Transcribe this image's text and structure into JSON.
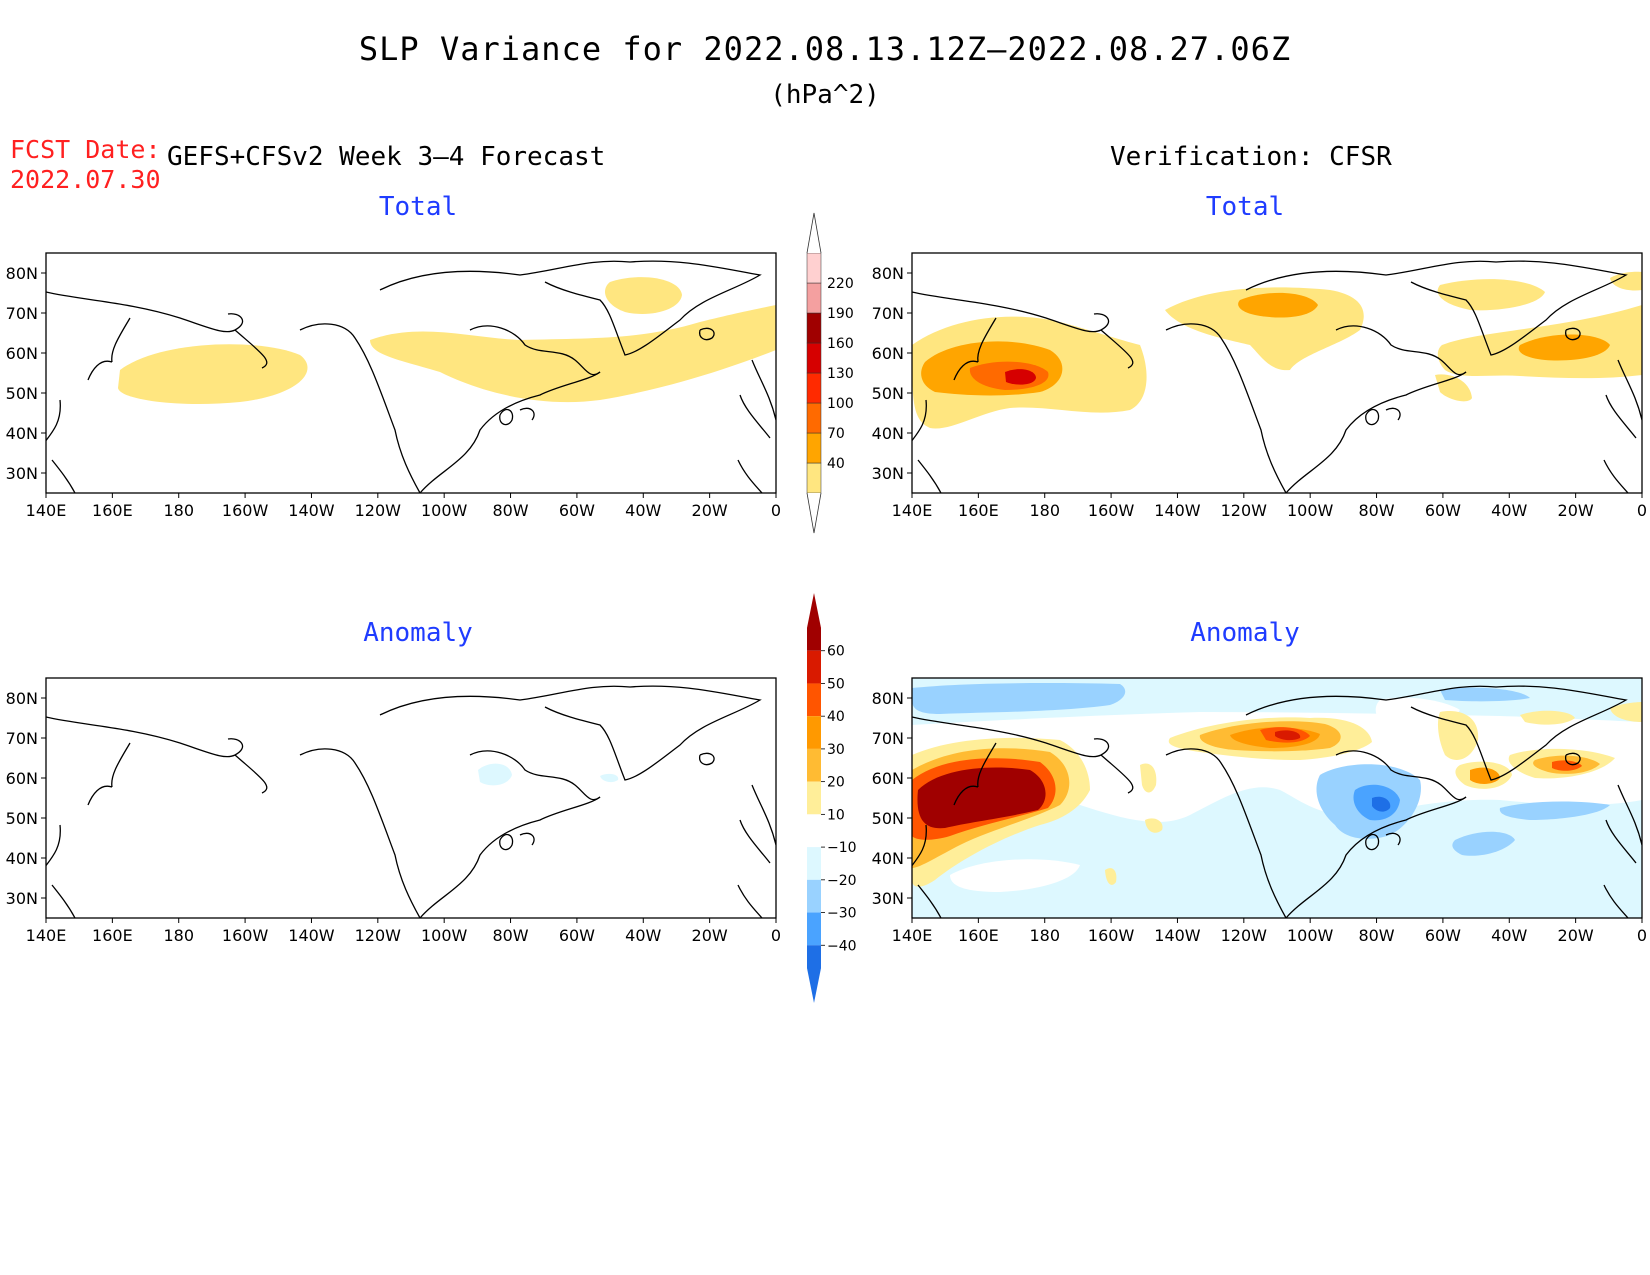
{
  "header": {
    "title": "SLP Variance for 2022.08.13.12Z–2022.08.27.06Z",
    "units": "(hPa^2)",
    "fcst_label": "FCST Date:",
    "fcst_date": "2022.07.30",
    "model_label": "GEFS+CFSv2 Week 3–4 Forecast",
    "verification_label": "Verification: CFSR"
  },
  "panels": [
    {
      "id": "forecast-total",
      "title": "Total"
    },
    {
      "id": "verification-total",
      "title": "Total"
    },
    {
      "id": "forecast-anomaly",
      "title": "Anomaly"
    },
    {
      "id": "verification-anomaly",
      "title": "Anomaly"
    }
  ],
  "axes": {
    "lat_labels": [
      "80N",
      "70N",
      "60N",
      "50N",
      "40N",
      "30N"
    ],
    "lon_labels": [
      "140E",
      "160E",
      "180",
      "160W",
      "140W",
      "120W",
      "100W",
      "80W",
      "60W",
      "40W",
      "20W",
      "0"
    ],
    "lat_range": [
      25,
      85
    ],
    "lon_range_east": [
      140,
      360
    ]
  },
  "colorbars": {
    "total": {
      "levels": [
        "40",
        "70",
        "100",
        "130",
        "160",
        "190",
        "220"
      ],
      "colors": [
        "#ffe680",
        "#ffa500",
        "#ff6a00",
        "#ff2a00",
        "#d60000",
        "#a00000",
        "#f4a0a0",
        "#ffd0d0"
      ]
    },
    "anomaly": {
      "levels": [
        "60",
        "50",
        "40",
        "30",
        "20",
        "10",
        "−10",
        "−20",
        "−30",
        "−40"
      ],
      "colors": [
        "#a00000",
        "#d91a00",
        "#ff5500",
        "#ff9900",
        "#ffbb33",
        "#ffee99",
        "#ffffff",
        "#ddf8ff",
        "#99d2ff",
        "#4aa3ff",
        "#1e6fe6"
      ]
    }
  },
  "colors": {
    "frame": "#000000",
    "coast": "#000000",
    "panel_title": "#1f3cff",
    "fcst_date": "#ff2020"
  }
}
